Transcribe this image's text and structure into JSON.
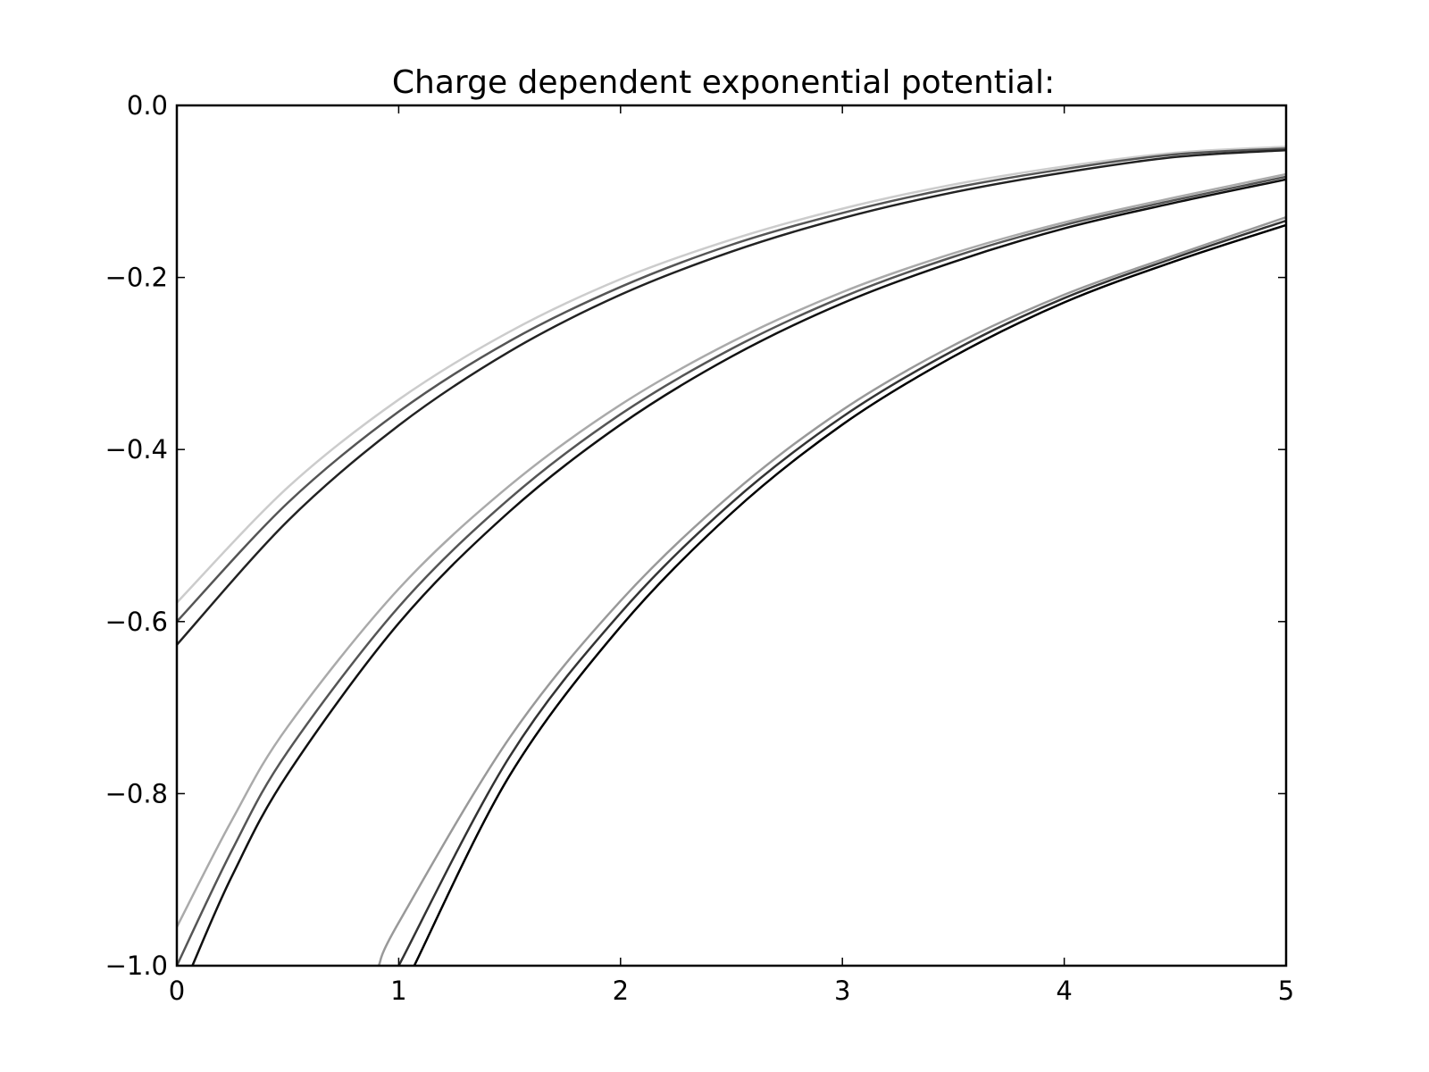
{
  "chart_data": {
    "type": "line",
    "title": "Charge dependent exponential potential:",
    "xlabel": "",
    "ylabel": "",
    "xlim": [
      0,
      5
    ],
    "ylim": [
      -1.0,
      0.0
    ],
    "grid": false,
    "legend": "none",
    "x_ticks": [
      0,
      1,
      2,
      3,
      4,
      5
    ],
    "x_tick_labels": [
      "0",
      "1",
      "2",
      "3",
      "4",
      "5"
    ],
    "y_ticks": [
      0.0,
      -0.2,
      -0.4,
      -0.6,
      -0.8,
      -1.0
    ],
    "y_tick_labels": [
      "0.0",
      "−0.2",
      "−0.4",
      "−0.6",
      "−0.8",
      "−1.0"
    ],
    "series": [
      {
        "color": "#cccccc",
        "x": [
          0,
          0.5,
          1,
          1.5,
          2,
          2.5,
          3,
          3.5,
          4,
          4.5,
          5
        ],
        "values": [
          -0.578,
          -0.444,
          -0.342,
          -0.263,
          -0.202,
          -0.156,
          -0.12,
          -0.092,
          -0.071,
          -0.055,
          -0.048
        ]
      },
      {
        "color": "#555555",
        "x": [
          0,
          0.5,
          1,
          1.5,
          2,
          2.5,
          3,
          3.5,
          4,
          4.5,
          5
        ],
        "values": [
          -0.6,
          -0.462,
          -0.356,
          -0.274,
          -0.211,
          -0.162,
          -0.125,
          -0.096,
          -0.074,
          -0.057,
          -0.05
        ]
      },
      {
        "color": "#222222",
        "x": [
          0,
          0.5,
          1,
          1.5,
          2,
          2.5,
          3,
          3.5,
          4,
          4.5,
          5
        ],
        "values": [
          -0.627,
          -0.483,
          -0.372,
          -0.286,
          -0.22,
          -0.17,
          -0.131,
          -0.101,
          -0.078,
          -0.06,
          -0.052
        ]
      },
      {
        "color": "#aaaaaa",
        "x": [
          0,
          0.25,
          0.5,
          1,
          1.5,
          2,
          2.5,
          3,
          3.5,
          4,
          4.5,
          5
        ],
        "values": [
          -0.955,
          -0.83,
          -0.722,
          -0.562,
          -0.442,
          -0.348,
          -0.275,
          -0.217,
          -0.172,
          -0.136,
          -0.107,
          -0.08
        ]
      },
      {
        "color": "#555555",
        "x": [
          0,
          0.25,
          0.5,
          1,
          1.5,
          2,
          2.5,
          3,
          3.5,
          4,
          4.5,
          5
        ],
        "values": [
          -1.0,
          -0.865,
          -0.751,
          -0.583,
          -0.457,
          -0.359,
          -0.283,
          -0.223,
          -0.176,
          -0.139,
          -0.11,
          -0.083
        ]
      },
      {
        "color": "#111111",
        "x": [
          0.07,
          0.25,
          0.5,
          1,
          1.5,
          2,
          2.5,
          3,
          3.5,
          4,
          4.5,
          5
        ],
        "values": [
          -1.0,
          -0.895,
          -0.777,
          -0.602,
          -0.472,
          -0.371,
          -0.292,
          -0.23,
          -0.182,
          -0.143,
          -0.113,
          -0.086
        ]
      },
      {
        "color": "#999999",
        "x": [
          0.91,
          1,
          1.5,
          2,
          2.5,
          3,
          3.5,
          4,
          4.5,
          5
        ],
        "values": [
          -1.0,
          -0.95,
          -0.735,
          -0.576,
          -0.452,
          -0.354,
          -0.279,
          -0.22,
          -0.174,
          -0.13
        ]
      },
      {
        "color": "#333333",
        "x": [
          1.0,
          1.5,
          2,
          2.5,
          3,
          3.5,
          4,
          4.5,
          5
        ],
        "values": [
          -1.0,
          -0.757,
          -0.59,
          -0.462,
          -0.362,
          -0.285,
          -0.224,
          -0.177,
          -0.134
        ]
      },
      {
        "color": "#000000",
        "x": [
          1.07,
          1.5,
          2,
          2.5,
          3,
          3.5,
          4,
          4.5,
          5
        ],
        "values": [
          -1.0,
          -0.779,
          -0.606,
          -0.474,
          -0.371,
          -0.292,
          -0.229,
          -0.181,
          -0.139
        ]
      }
    ]
  }
}
